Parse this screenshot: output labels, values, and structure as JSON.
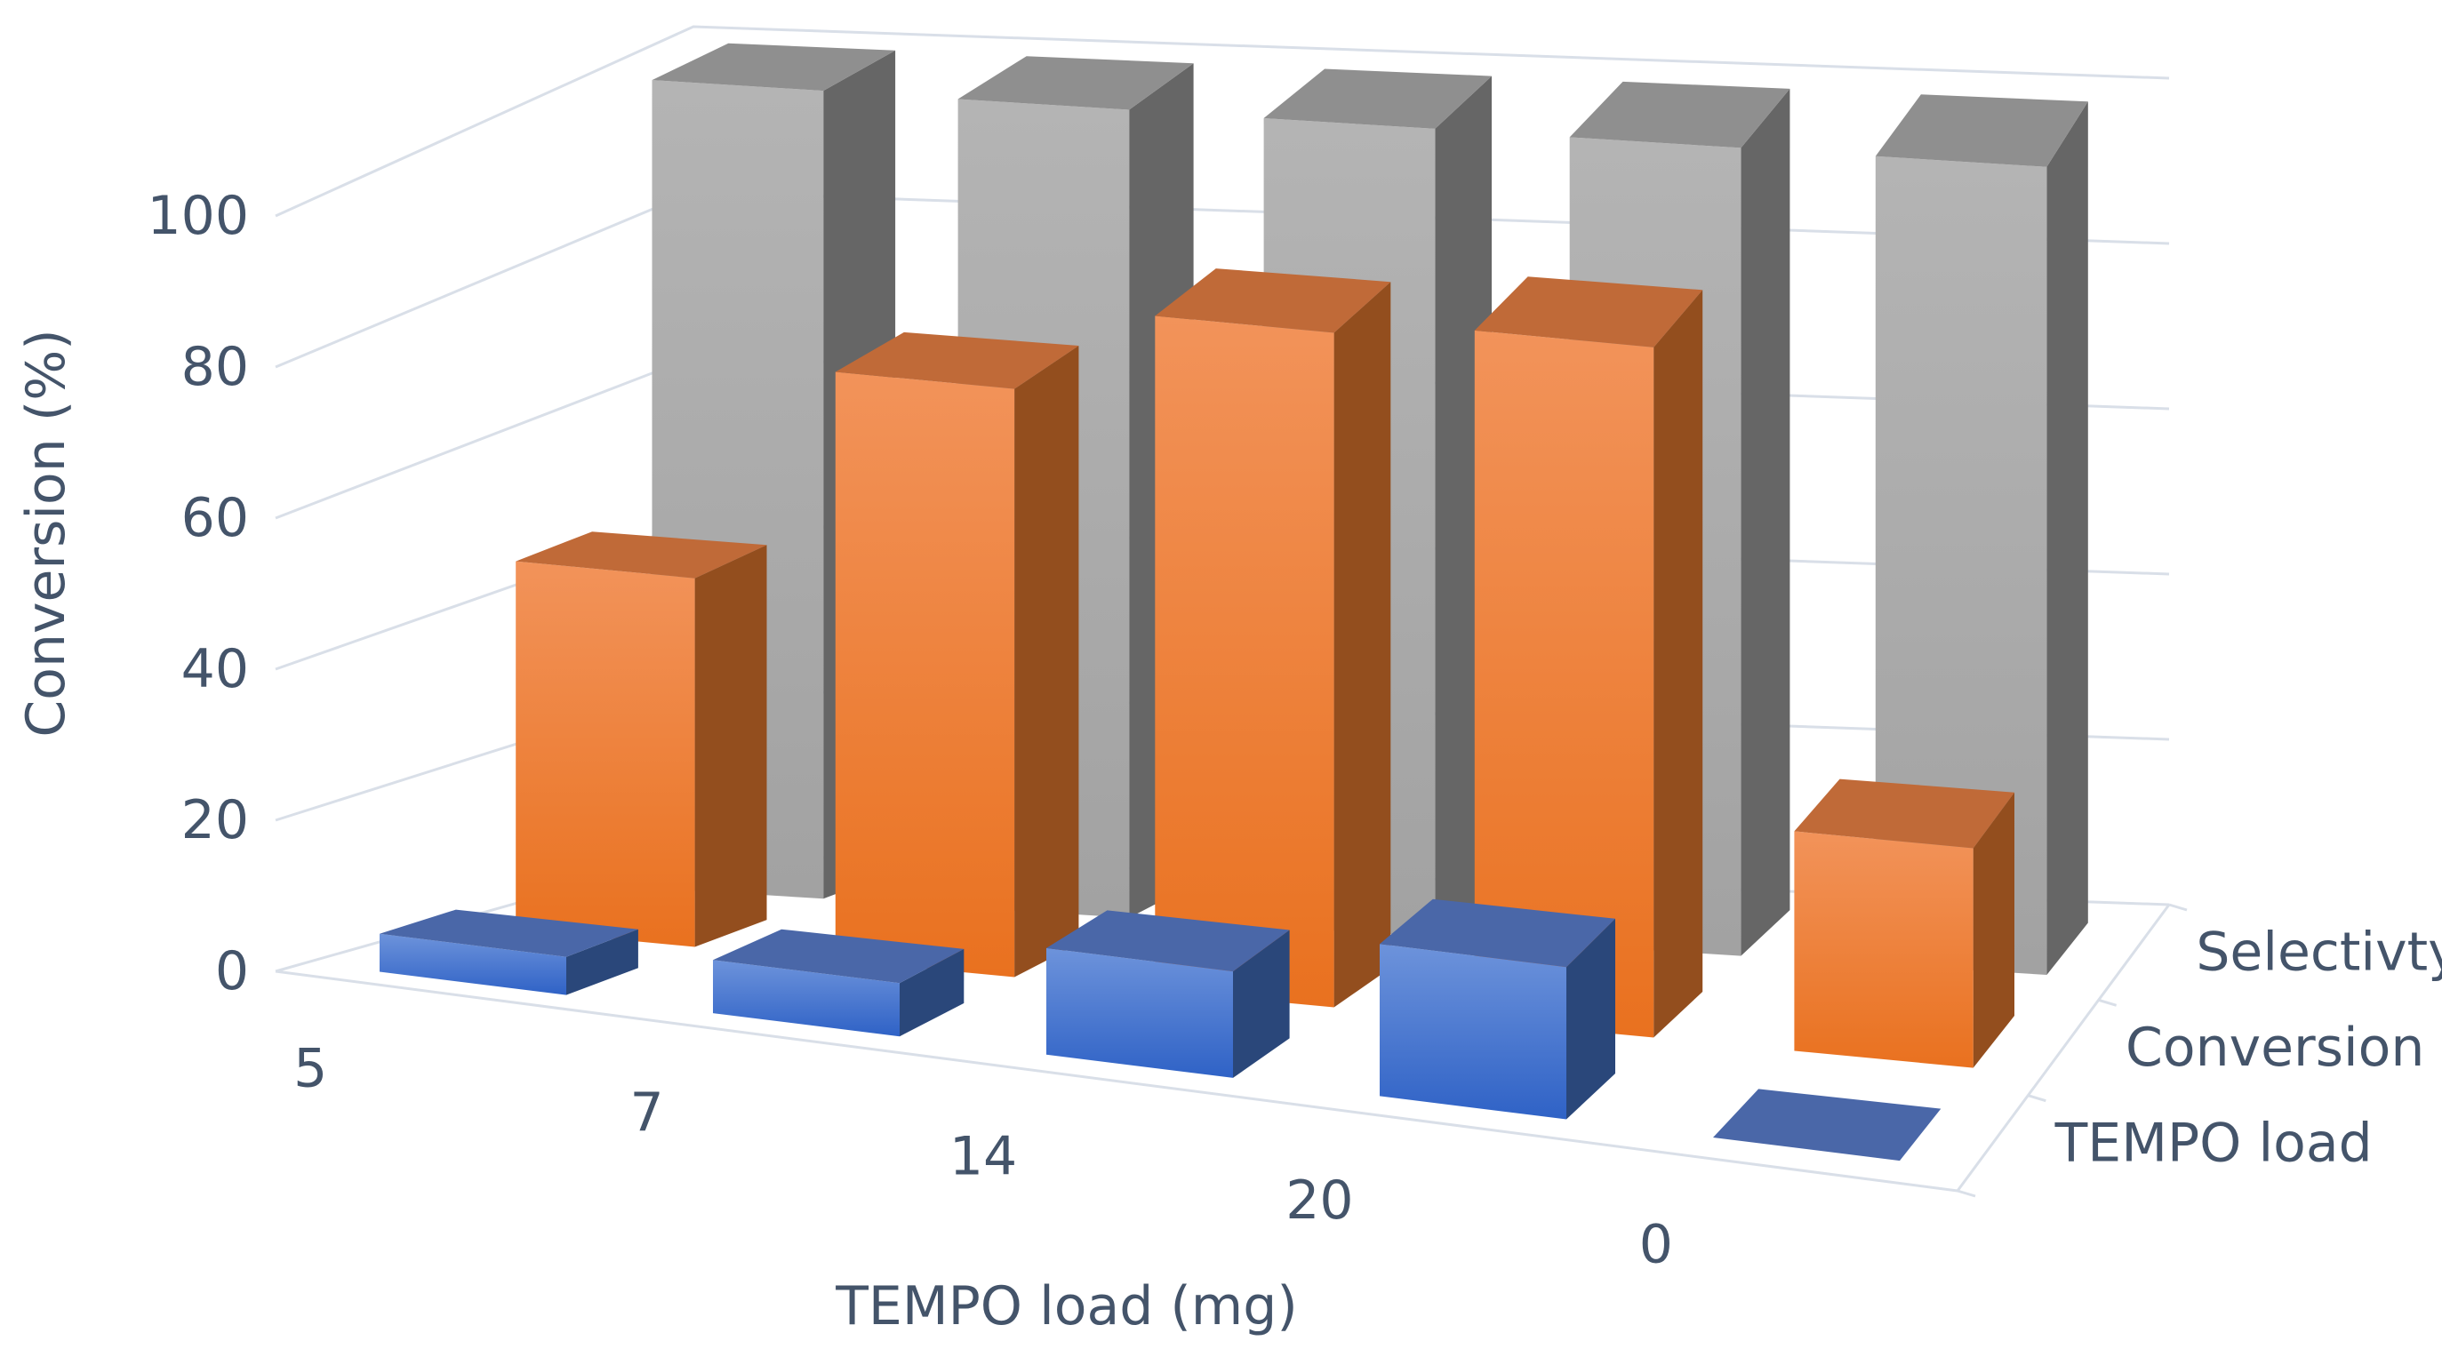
{
  "chart_data": {
    "type": "bar",
    "subtype": "3d-column",
    "title": "",
    "categories": [
      "5",
      "7",
      "14",
      "20",
      "0"
    ],
    "series": [
      {
        "name": "TEMPO load",
        "values": [
          5,
          7,
          14,
          20,
          0
        ],
        "color": "#4472c4"
      },
      {
        "name": "Conversion",
        "values": [
          47,
          75,
          86,
          88,
          28
        ],
        "color": "#ed7d31"
      },
      {
        "name": "Selectivty",
        "values": [
          100,
          100,
          100,
          100,
          100
        ],
        "color": "#a5a5a5"
      }
    ],
    "xlabel": "TEMPO load (mg)",
    "ylabel": "Conversion (%)",
    "ylim": [
      0,
      100
    ],
    "yticks": [
      "0",
      "20",
      "40",
      "60",
      "80",
      "100"
    ],
    "grid": true
  }
}
